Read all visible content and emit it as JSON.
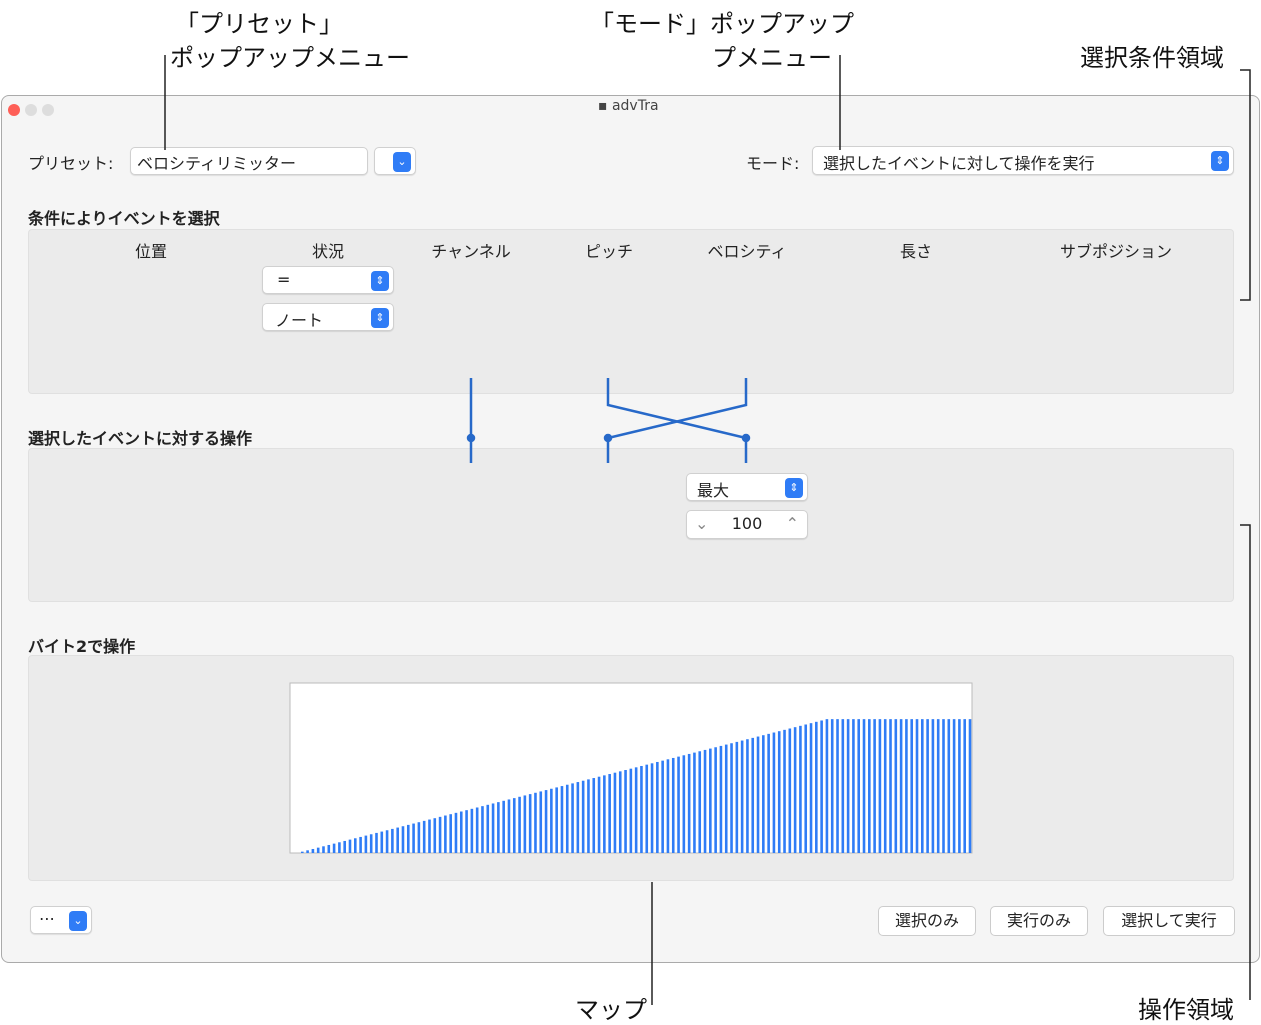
{
  "annotations": {
    "preset_popup": [
      "「プリセット」",
      "ポップアップメニュー"
    ],
    "mode_popup": [
      "「モード」ポップアップ",
      "プメニュー"
    ],
    "condition_area": "選択条件領域",
    "map": "マップ",
    "operation_area": "操作領域"
  },
  "window": {
    "title": "advTra",
    "preset": {
      "label": "プリセット:",
      "value": "ベロシティリミッター"
    },
    "mode": {
      "label": "モード:",
      "value": "選択したイベントに対して操作を実行"
    },
    "condition": {
      "heading": "条件によりイベントを選択",
      "columns": [
        "位置",
        "状況",
        "チャンネル",
        "ピッチ",
        "ベロシティ",
        "長さ",
        "サブポジション"
      ],
      "status_operator": "=",
      "status_type": "ノート"
    },
    "operation": {
      "heading": "選択したイベントに対する操作",
      "velocity_mode": "最大",
      "velocity_value": "100"
    },
    "map": {
      "heading": "バイト2で操作",
      "ylim": [
        0,
        127
      ],
      "values": [
        0,
        1,
        2,
        3,
        4,
        5,
        6,
        7,
        8,
        9,
        10,
        11,
        12,
        13,
        14,
        15,
        16,
        17,
        18,
        19,
        20,
        21,
        22,
        23,
        24,
        25,
        26,
        27,
        28,
        29,
        30,
        31,
        32,
        33,
        34,
        35,
        36,
        37,
        38,
        39,
        40,
        41,
        42,
        43,
        44,
        45,
        46,
        47,
        48,
        49,
        50,
        51,
        52,
        53,
        54,
        55,
        56,
        57,
        58,
        59,
        60,
        61,
        62,
        63,
        64,
        65,
        66,
        67,
        68,
        69,
        70,
        71,
        72,
        73,
        74,
        75,
        76,
        77,
        78,
        79,
        80,
        81,
        82,
        83,
        84,
        85,
        86,
        87,
        88,
        89,
        90,
        91,
        92,
        93,
        94,
        95,
        96,
        97,
        98,
        99,
        100,
        100,
        100,
        100,
        100,
        100,
        100,
        100,
        100,
        100,
        100,
        100,
        100,
        100,
        100,
        100,
        100,
        100,
        100,
        100,
        100,
        100,
        100,
        100,
        100,
        100,
        100,
        100
      ]
    },
    "buttons": [
      "選択のみ",
      "実行のみ",
      "選択して実行"
    ]
  }
}
